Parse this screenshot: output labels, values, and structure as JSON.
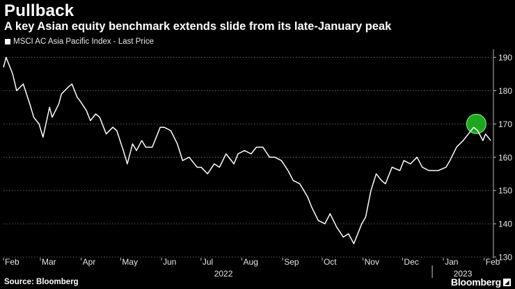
{
  "header": {
    "title": "Pullback",
    "subtitle": "A key Asian equity benchmark extends slide from its late-January peak"
  },
  "legend": {
    "label": "MSCI AC Asia Pacific Index - Last Price"
  },
  "footer": {
    "source": "Source: Bloomberg",
    "brand": "Bloomberg"
  },
  "colors": {
    "background": "#000000",
    "line": "#ffffff",
    "highlight": "#1fa51f",
    "grid": "#777777"
  },
  "chart_data": {
    "type": "line",
    "series": [
      {
        "name": "MSCI AC Asia Pacific Index - Last Price",
        "x": [
          "2022-02-01",
          "2022-02-03",
          "2022-02-08",
          "2022-02-11",
          "2022-02-16",
          "2022-02-21",
          "2022-02-24",
          "2022-02-28",
          "2022-03-03",
          "2022-03-08",
          "2022-03-10",
          "2022-03-15",
          "2022-03-17",
          "2022-03-22",
          "2022-03-25",
          "2022-03-29",
          "2022-03-31",
          "2022-04-05",
          "2022-04-08",
          "2022-04-12",
          "2022-04-15",
          "2022-04-20",
          "2022-04-25",
          "2022-04-28",
          "2022-05-03",
          "2022-05-06",
          "2022-05-10",
          "2022-05-13",
          "2022-05-17",
          "2022-05-20",
          "2022-05-25",
          "2022-05-31",
          "2022-06-03",
          "2022-06-08",
          "2022-06-13",
          "2022-06-17",
          "2022-06-22",
          "2022-06-28",
          "2022-07-01",
          "2022-07-06",
          "2022-07-11",
          "2022-07-15",
          "2022-07-20",
          "2022-07-26",
          "2022-07-29",
          "2022-08-03",
          "2022-08-08",
          "2022-08-12",
          "2022-08-17",
          "2022-08-22",
          "2022-08-26",
          "2022-08-31",
          "2022-09-05",
          "2022-09-09",
          "2022-09-14",
          "2022-09-20",
          "2022-09-23",
          "2022-09-28",
          "2022-10-03",
          "2022-10-07",
          "2022-10-12",
          "2022-10-17",
          "2022-10-21",
          "2022-10-25",
          "2022-10-31",
          "2022-11-03",
          "2022-11-07",
          "2022-11-11",
          "2022-11-15",
          "2022-11-18",
          "2022-11-23",
          "2022-11-29",
          "2022-12-02",
          "2022-12-07",
          "2022-12-12",
          "2022-12-16",
          "2022-12-21",
          "2022-12-28",
          "2023-01-03",
          "2023-01-06",
          "2023-01-11",
          "2023-01-16",
          "2023-01-20",
          "2023-01-24",
          "2023-01-27",
          "2023-01-31",
          "2023-02-02",
          "2023-02-06"
        ],
        "values": [
          187,
          190,
          185,
          180,
          182,
          176,
          172,
          170,
          166,
          175,
          172,
          176,
          179,
          181,
          182,
          178,
          177,
          174,
          171,
          173,
          172,
          167,
          169,
          168,
          162,
          158,
          164,
          162,
          165,
          163,
          163,
          169,
          169,
          168,
          164,
          159,
          160,
          157,
          157,
          155,
          158,
          157,
          161,
          158,
          161,
          162,
          161,
          163,
          163,
          160,
          160,
          159,
          156,
          153,
          152,
          148,
          145,
          141,
          140,
          143,
          139,
          136,
          137,
          134,
          140,
          142,
          150,
          155,
          153,
          152,
          157,
          156,
          159,
          158,
          160,
          157,
          156,
          156,
          157,
          159,
          163,
          165,
          167,
          169,
          168,
          165,
          167,
          165
        ]
      }
    ],
    "ylim": [
      130,
      192
    ],
    "yticks": [
      130,
      140,
      150,
      160,
      170,
      180,
      190
    ],
    "ytick_labels": [
      "130",
      "140",
      "150",
      "160",
      "170",
      "180",
      "190"
    ],
    "xticks": [
      "2022-02-01",
      "2022-03-01",
      "2022-04-01",
      "2022-05-01",
      "2022-06-01",
      "2022-07-01",
      "2022-08-01",
      "2022-09-01",
      "2022-10-01",
      "2022-11-01",
      "2022-12-01",
      "2023-01-01",
      "2023-02-01"
    ],
    "xtick_labels": [
      "Feb",
      "Mar",
      "Apr",
      "May",
      "Jun",
      "Jul",
      "Aug",
      "Sep",
      "Oct",
      "Nov",
      "Dec",
      "Jan",
      "Feb"
    ],
    "year_labels": [
      "2022",
      "2023"
    ],
    "highlight": {
      "x": "2023-01-26",
      "y": 170
    },
    "grid": true,
    "yaxis_side": "right"
  }
}
